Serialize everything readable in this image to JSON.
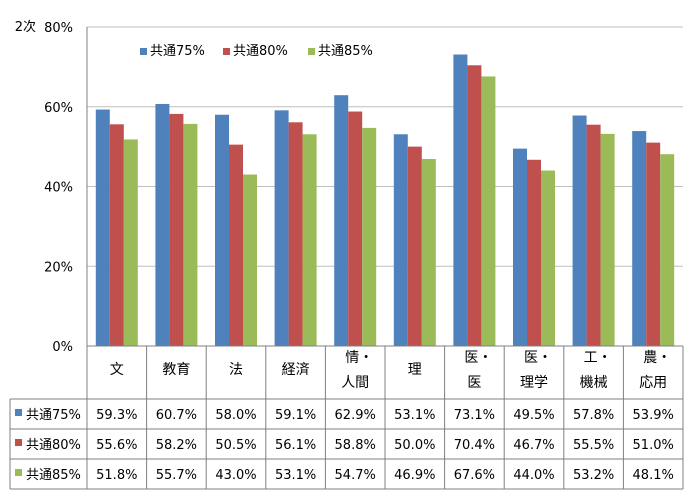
{
  "chart_data": {
    "type": "bar",
    "ylabel": "2次",
    "ylim": [
      0,
      80
    ],
    "yticks": [
      "0%",
      "20%",
      "40%",
      "60%",
      "80%"
    ],
    "ytick_values": [
      0,
      20,
      40,
      60,
      80
    ],
    "categories": [
      "文",
      "教育",
      "法",
      "経済",
      "情・人間",
      "理",
      "医・医",
      "医・理学",
      "工・機械",
      "農・応用"
    ],
    "category_lines": [
      [
        "文"
      ],
      [
        "教育"
      ],
      [
        "法"
      ],
      [
        "経済"
      ],
      [
        "情・",
        "人間"
      ],
      [
        "理"
      ],
      [
        "医・",
        "医"
      ],
      [
        "医・",
        "理学"
      ],
      [
        "工・",
        "機械"
      ],
      [
        "農・",
        "応用"
      ]
    ],
    "series": [
      {
        "name": "共通75%",
        "color": "#4f81bd",
        "values": [
          59.3,
          60.7,
          58.0,
          59.1,
          62.9,
          53.1,
          73.1,
          49.5,
          57.8,
          53.9
        ],
        "labels": [
          "59.3%",
          "60.7%",
          "58.0%",
          "59.1%",
          "62.9%",
          "53.1%",
          "73.1%",
          "49.5%",
          "57.8%",
          "53.9%"
        ]
      },
      {
        "name": "共通80%",
        "color": "#c0504d",
        "values": [
          55.6,
          58.2,
          50.5,
          56.1,
          58.8,
          50.0,
          70.4,
          46.7,
          55.5,
          51.0
        ],
        "labels": [
          "55.6%",
          "58.2%",
          "50.5%",
          "56.1%",
          "58.8%",
          "50.0%",
          "70.4%",
          "46.7%",
          "55.5%",
          "51.0%"
        ]
      },
      {
        "name": "共通85%",
        "color": "#9bbb59",
        "values": [
          51.8,
          55.7,
          43.0,
          53.1,
          54.7,
          46.9,
          67.6,
          44.0,
          53.2,
          48.1
        ],
        "labels": [
          "51.8%",
          "55.7%",
          "43.0%",
          "53.1%",
          "54.7%",
          "46.9%",
          "67.6%",
          "44.0%",
          "53.2%",
          "48.1%"
        ]
      }
    ],
    "legend_position": "top-left",
    "grid": true,
    "data_table": true
  }
}
